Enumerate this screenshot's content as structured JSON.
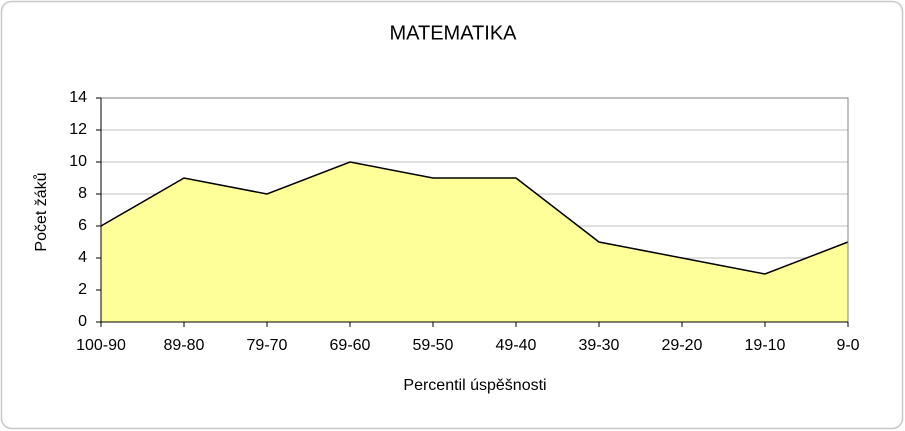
{
  "chart_data": {
    "type": "area",
    "title": "MATEMATIKA",
    "x_label": "Percentil úspěšnosti",
    "y_label": "Počet žáků",
    "categories": [
      "100-90",
      "89-80",
      "79-70",
      "69-60",
      "59-50",
      "49-40",
      "39-30",
      "29-20",
      "19-10",
      "9-0"
    ],
    "values": [
      6,
      9,
      8,
      10,
      9,
      9,
      5,
      4,
      3,
      5
    ],
    "color": "#ffff99",
    "ylim": [
      0,
      14
    ],
    "yticks": [
      0,
      2,
      4,
      6,
      8,
      10,
      12,
      14
    ],
    "grid": true
  }
}
